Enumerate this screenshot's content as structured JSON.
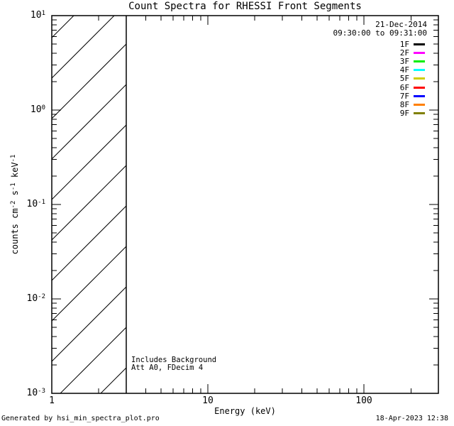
{
  "annotations": {
    "date": "21-Dec-2014",
    "time_range": "09:30:00 to 09:31:00",
    "background_note": "Includes Background",
    "att_note": "Att A0, FDecim 4"
  },
  "footer": {
    "left": "Generated by hsi_min_spectra_plot.pro",
    "right": "18-Apr-2023 12:38"
  },
  "chart_data": {
    "type": "line",
    "title": "Count Spectra for RHESSI Front Segments",
    "xlabel": "Energy (keV)",
    "ylabel_parts": [
      {
        "text": "counts cm"
      },
      {
        "sup": "-2"
      },
      {
        "text": " s"
      },
      {
        "sup": "-1"
      },
      {
        "text": " keV"
      },
      {
        "sup": "-1"
      }
    ],
    "xscale": "log",
    "yscale": "log",
    "xlim": [
      1,
      300
    ],
    "ylim": [
      0.001,
      10
    ],
    "grid": false,
    "background_color": "#ffffff",
    "axis_color": "#000000",
    "legend_position": "upper right",
    "xticks": [
      {
        "label": "1",
        "value": 1
      },
      {
        "label": "10",
        "value": 10
      },
      {
        "label": "100",
        "value": 100
      }
    ],
    "yticks": [
      {
        "base": "10",
        "exp": "1",
        "value": 10
      },
      {
        "base": "10",
        "exp": "0",
        "value": 1
      },
      {
        "base": "10",
        "exp": "-1",
        "value": 0.1
      },
      {
        "base": "10",
        "exp": "-2",
        "value": 0.01
      },
      {
        "base": "10",
        "exp": "-3",
        "value": 0.001
      }
    ],
    "series": [
      {
        "name": "1F",
        "color": "#000000",
        "values": []
      },
      {
        "name": "2F",
        "color": "#ff00ff",
        "values": []
      },
      {
        "name": "3F",
        "color": "#00ee00",
        "values": []
      },
      {
        "name": "4F",
        "color": "#00ffff",
        "values": []
      },
      {
        "name": "5F",
        "color": "#cfcf00",
        "values": []
      },
      {
        "name": "6F",
        "color": "#ff0000",
        "values": []
      },
      {
        "name": "7F",
        "color": "#0000ff",
        "values": []
      },
      {
        "name": "8F",
        "color": "#ff8000",
        "values": []
      },
      {
        "name": "9F",
        "color": "#808000",
        "values": []
      }
    ],
    "hatched_region": {
      "x_range": [
        1,
        3
      ],
      "style": "diagonal-45deg"
    }
  }
}
